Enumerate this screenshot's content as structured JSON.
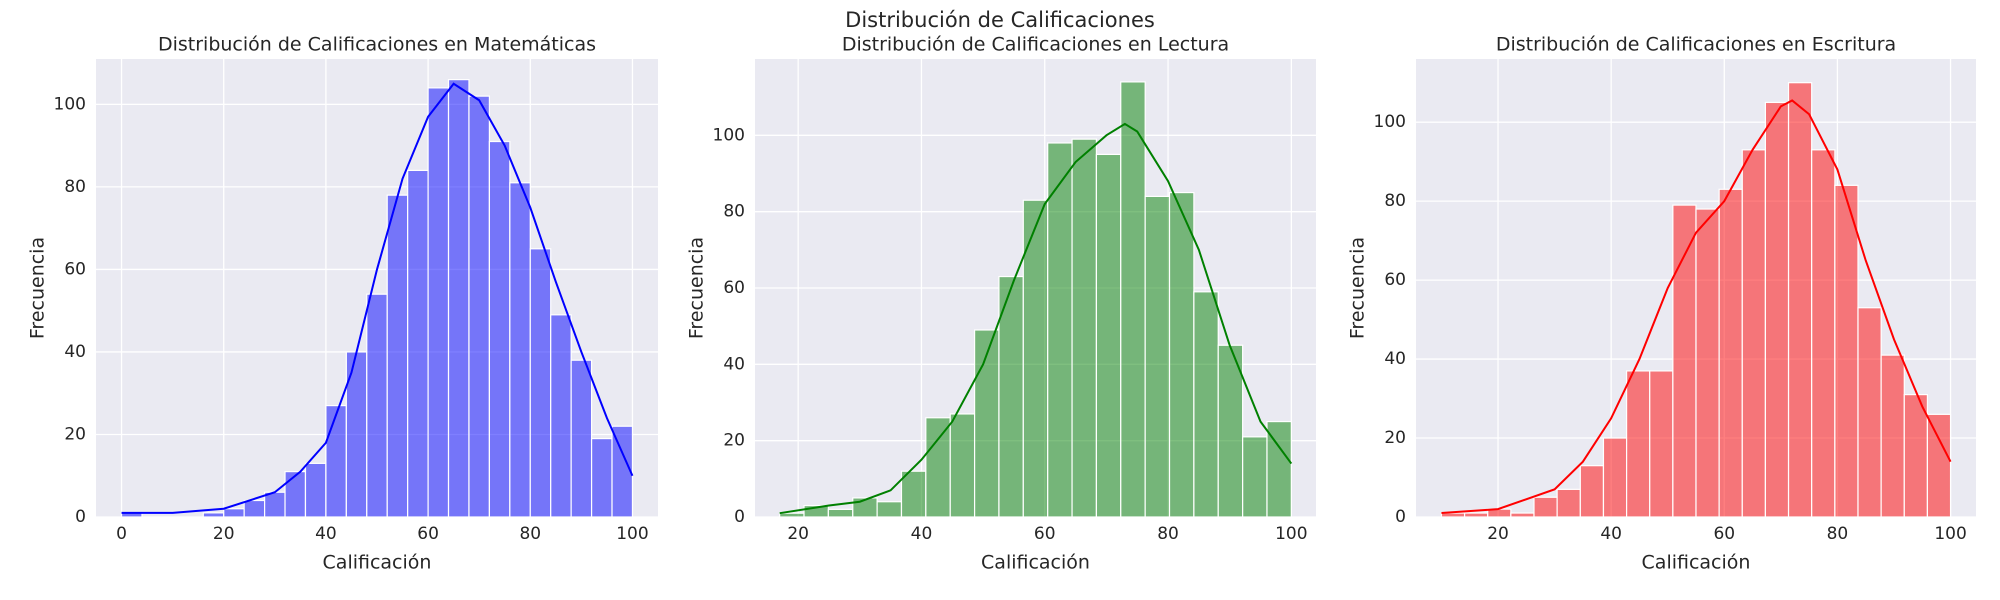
{
  "title": "Distribución de Calificaciones",
  "chart_data": [
    {
      "type": "histogram",
      "title": "Distribución de Calificaciones en Matemáticas",
      "x_label": "Calificación",
      "y_label": "Frecuencia",
      "bins": [
        0,
        4,
        8,
        12,
        16,
        20,
        24,
        28,
        32,
        36,
        40,
        44,
        48,
        52,
        56,
        60,
        64,
        68,
        72,
        76,
        80,
        84,
        88,
        92,
        96,
        100
      ],
      "values": [
        1,
        0,
        0,
        0,
        1,
        2,
        4,
        6,
        11,
        13,
        27,
        40,
        54,
        78,
        84,
        104,
        106,
        102,
        91,
        81,
        65,
        49,
        38,
        19,
        22
      ],
      "color": "#0000ff",
      "grid": true,
      "kde": {
        "x": [
          0,
          10,
          20,
          30,
          35,
          40,
          45,
          50,
          55,
          60,
          65,
          70,
          75,
          80,
          85,
          90,
          95,
          100
        ],
        "y": [
          1,
          1,
          2,
          6,
          11,
          18,
          35,
          60,
          82,
          97,
          105,
          101,
          90,
          75,
          57,
          40,
          24,
          10
        ]
      },
      "xlim": [
        -5,
        105
      ],
      "xticks": [
        0,
        20,
        40,
        60,
        80,
        100
      ],
      "ylim": [
        0,
        111
      ],
      "yticks": [
        0,
        20,
        40,
        60,
        80,
        100
      ]
    },
    {
      "type": "histogram",
      "title": "Distribución de Calificaciones en Lectura",
      "x_label": "Calificación",
      "y_label": "Frecuencia",
      "bins": [
        17,
        20.95,
        24.9,
        28.86,
        32.81,
        36.76,
        40.71,
        44.67,
        48.62,
        52.57,
        56.52,
        60.48,
        64.43,
        68.38,
        72.33,
        76.29,
        80.24,
        84.19,
        88.14,
        92.1,
        96.05,
        100
      ],
      "values": [
        1,
        3,
        2,
        5,
        4,
        12,
        26,
        27,
        49,
        63,
        83,
        98,
        99,
        95,
        114,
        84,
        85,
        59,
        45,
        21,
        25
      ],
      "color": "#008000",
      "grid": true,
      "kde": {
        "x": [
          17,
          25,
          30,
          35,
          40,
          45,
          50,
          55,
          60,
          65,
          70,
          73,
          75,
          80,
          85,
          90,
          95,
          100
        ],
        "y": [
          1,
          3,
          4,
          7,
          15,
          25,
          40,
          62,
          82,
          93,
          100,
          103,
          101,
          88,
          70,
          45,
          25,
          14
        ]
      },
      "xlim": [
        13,
        104
      ],
      "xticks": [
        20,
        40,
        60,
        80,
        100
      ],
      "ylim": [
        0,
        120
      ],
      "yticks": [
        0,
        20,
        40,
        60,
        80,
        100
      ]
    },
    {
      "type": "histogram",
      "title": "Distribución de Calificaciones en Escritura",
      "x_label": "Calificación",
      "y_label": "Frecuencia",
      "bins": [
        10,
        14.09,
        18.18,
        22.27,
        26.36,
        30.45,
        34.55,
        38.64,
        42.73,
        46.82,
        50.91,
        55,
        59.09,
        63.18,
        67.27,
        71.36,
        75.45,
        79.55,
        83.64,
        87.73,
        91.82,
        95.91,
        100
      ],
      "values": [
        1,
        1,
        2,
        1,
        5,
        7,
        13,
        20,
        37,
        37,
        79,
        78,
        83,
        93,
        105,
        110,
        93,
        84,
        53,
        41,
        31,
        26
      ],
      "color": "#ff0000",
      "grid": true,
      "kde": {
        "x": [
          10,
          20,
          30,
          35,
          40,
          45,
          50,
          55,
          60,
          65,
          70,
          72,
          75,
          80,
          85,
          90,
          95,
          100
        ],
        "y": [
          1,
          2,
          7,
          14,
          25,
          40,
          58,
          72,
          80,
          93,
          104,
          105.5,
          102,
          88,
          65,
          45,
          28,
          14
        ]
      },
      "xlim": [
        5.5,
        104.5
      ],
      "xticks": [
        20,
        40,
        60,
        80,
        100
      ],
      "ylim": [
        0,
        116
      ],
      "yticks": [
        0,
        20,
        40,
        60,
        80,
        100
      ]
    }
  ]
}
